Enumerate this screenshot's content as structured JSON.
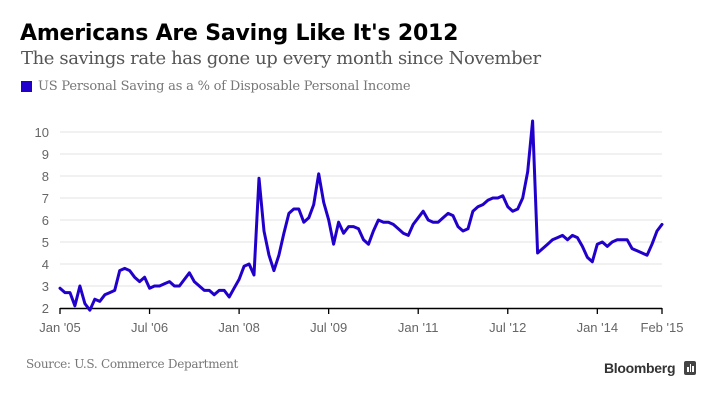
{
  "header": {
    "title": "Americans Are Saving Like It's 2012",
    "subtitle": "The savings rate has gone up every month since November"
  },
  "footer": {
    "source": "Source: U.S. Commerce Department",
    "brand": "Bloomberg"
  },
  "chart_data": {
    "type": "line",
    "title": "Americans Are Saving Like It's 2012",
    "subtitle": "The savings rate has gone up every month since November",
    "xlabel": "",
    "ylabel": "",
    "legend_position": "top-left",
    "grid": true,
    "ylim": [
      2,
      10.5
    ],
    "yticks": [
      2,
      3,
      4,
      5,
      6,
      7,
      8,
      9,
      10
    ],
    "x_start": "Jan 2005",
    "x_end": "Feb 2015",
    "x_frequency": "monthly",
    "xticks": [
      {
        "label": "Jan '05",
        "month_index": 0
      },
      {
        "label": "Jul '06",
        "month_index": 18
      },
      {
        "label": "Jan '08",
        "month_index": 36
      },
      {
        "label": "Jul '09",
        "month_index": 54
      },
      {
        "label": "Jan '11",
        "month_index": 72
      },
      {
        "label": "Jul '12",
        "month_index": 90
      },
      {
        "label": "Jan '14",
        "month_index": 108
      },
      {
        "label": "Feb '15",
        "month_index": 121
      }
    ],
    "series": [
      {
        "name": "US Personal Saving as a % of Disposable Personal Income",
        "color": "#2200cc",
        "values": [
          2.9,
          2.7,
          2.7,
          2.1,
          3.0,
          2.2,
          1.9,
          2.4,
          2.3,
          2.6,
          2.7,
          2.8,
          3.7,
          3.8,
          3.7,
          3.4,
          3.2,
          3.4,
          2.9,
          3.0,
          3.0,
          3.1,
          3.2,
          3.0,
          3.0,
          3.3,
          3.6,
          3.2,
          3.0,
          2.8,
          2.8,
          2.6,
          2.8,
          2.8,
          2.5,
          2.9,
          3.3,
          3.9,
          4.0,
          3.5,
          7.9,
          5.5,
          4.4,
          3.7,
          4.4,
          5.4,
          6.3,
          6.5,
          6.5,
          5.9,
          6.1,
          6.7,
          8.1,
          6.8,
          6.0,
          4.9,
          5.9,
          5.4,
          5.7,
          5.7,
          5.6,
          5.1,
          4.9,
          5.5,
          6.0,
          5.9,
          5.9,
          5.8,
          5.6,
          5.4,
          5.3,
          5.8,
          6.1,
          6.4,
          6.0,
          5.9,
          5.9,
          6.1,
          6.3,
          6.2,
          5.7,
          5.5,
          5.6,
          6.4,
          6.6,
          6.7,
          6.9,
          7.0,
          7.0,
          7.1,
          6.6,
          6.4,
          6.5,
          7.0,
          8.2,
          10.5,
          4.5,
          4.7,
          4.9,
          5.1,
          5.2,
          5.3,
          5.1,
          5.3,
          5.2,
          4.8,
          4.3,
          4.1,
          4.9,
          5.0,
          4.8,
          5.0,
          5.1,
          5.1,
          5.1,
          4.7,
          4.6,
          4.5,
          4.4,
          4.9,
          5.5,
          5.8
        ]
      }
    ]
  }
}
